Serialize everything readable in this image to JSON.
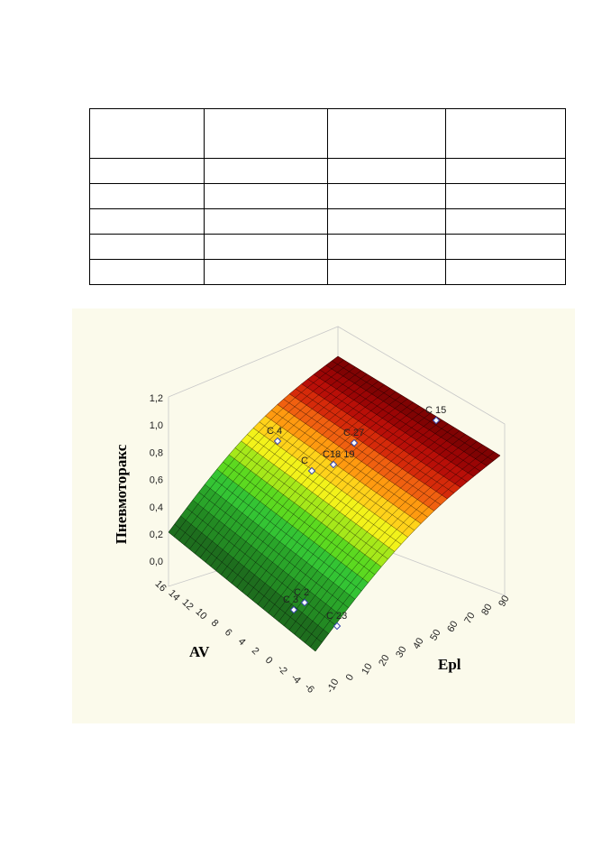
{
  "figure": {
    "z_axis_label": "Пневмоторакс",
    "x_axis_label": "AV",
    "y_axis_label": "Epl",
    "z_ticks": [
      "1,2",
      "1,0",
      "0,8",
      "0,6",
      "0,4",
      "0,2",
      "0,0"
    ],
    "av_ticks": [
      "16",
      "14",
      "12",
      "10",
      "8",
      "6",
      "4",
      "2",
      "0",
      "-2",
      "-4",
      "-6"
    ],
    "epl_ticks": [
      "-10",
      "0",
      "10",
      "20",
      "30",
      "40",
      "50",
      "60",
      "70",
      "80",
      "90"
    ],
    "point_labels": [
      "C 15",
      "C 4",
      "C 27",
      "C18 19",
      "C",
      "C 2",
      "C 3",
      "C 23"
    ]
  }
}
